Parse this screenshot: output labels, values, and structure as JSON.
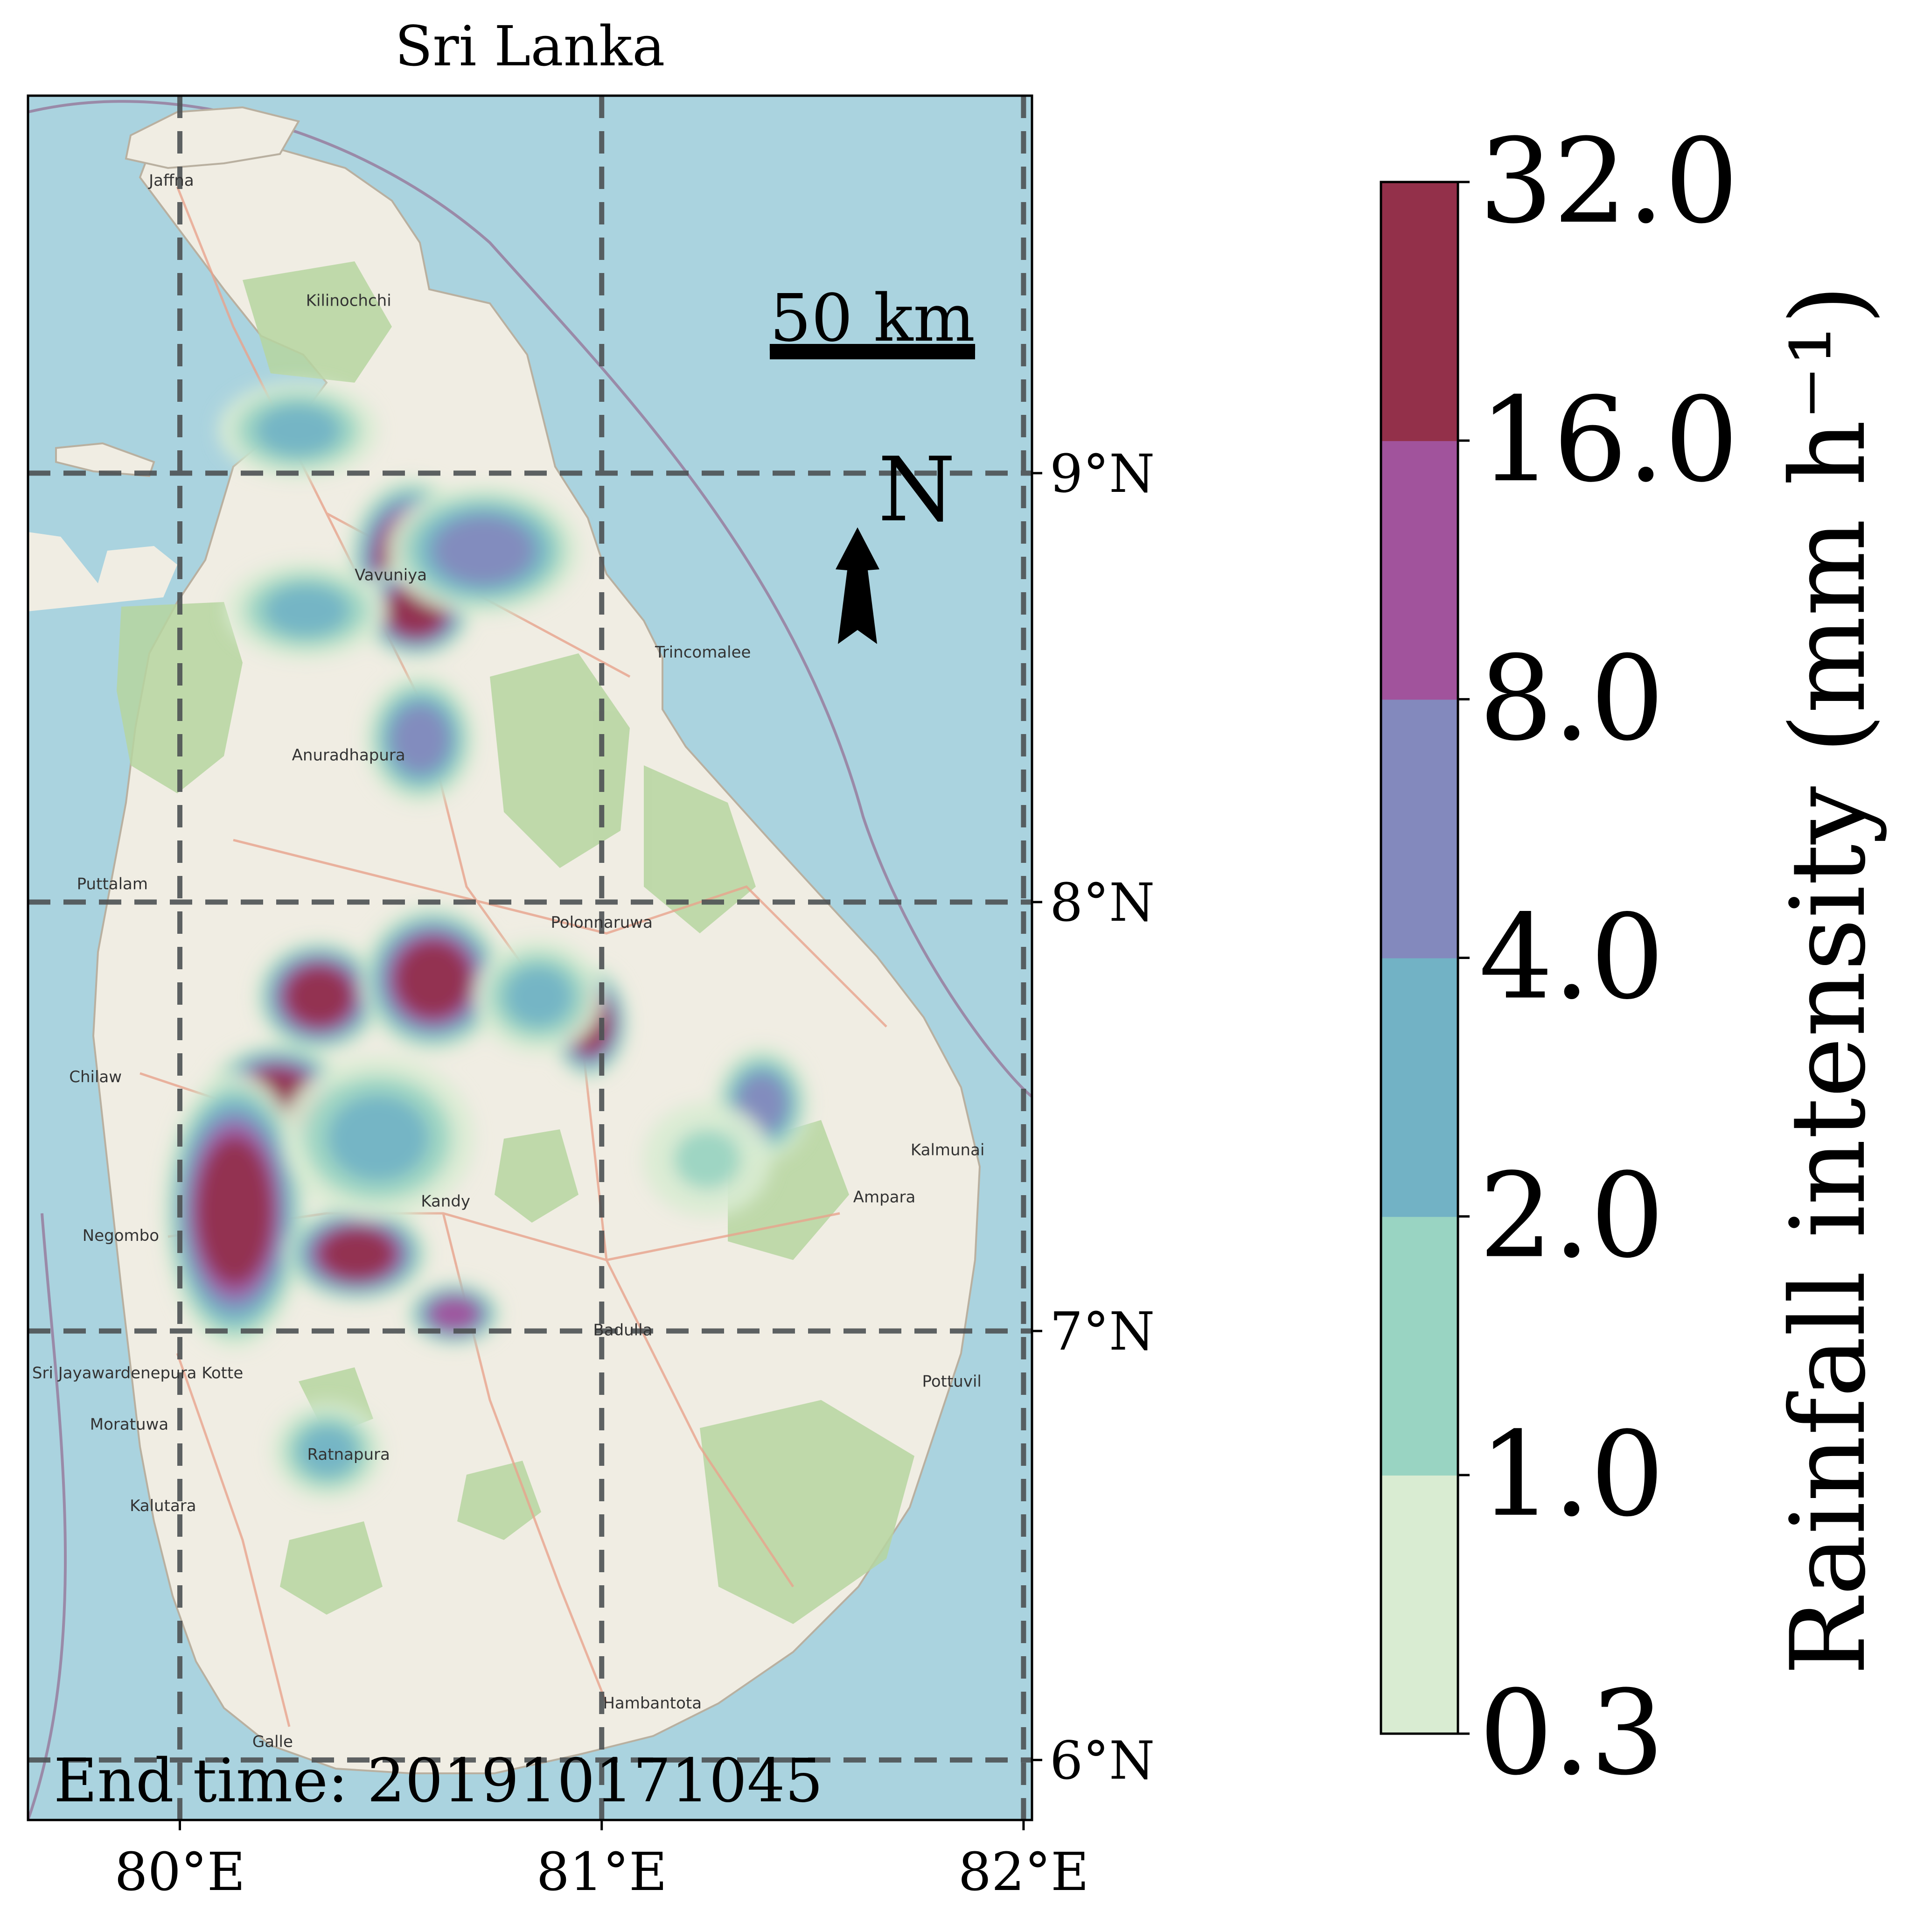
{
  "map": {
    "title": "Sri Lanka",
    "end_time": "End time: 201910171045",
    "scale_bar_label": "50 km",
    "north_label": "N",
    "north_arrow_icon": "north-arrow-icon",
    "lon_ticks": [
      "80°E",
      "81°E",
      "82°E"
    ],
    "lat_ticks": [
      "9°N",
      "8°N",
      "7°N",
      "6°N"
    ],
    "extent": {
      "lon": [
        79.64,
        82.02
      ],
      "lat": [
        5.86,
        9.88
      ]
    },
    "colors": {
      "sea": "#aad3df",
      "land": "#f0ede3",
      "forest": "#b6d5a0",
      "border": "#9a8aa8",
      "grid": "#4d5254"
    },
    "place_labels": [
      {
        "name": "Jaffna",
        "lon": 79.98,
        "lat": 9.67
      },
      {
        "name": "Kilinochchi",
        "lon": 80.4,
        "lat": 9.39
      },
      {
        "name": "Vavuniya",
        "lon": 80.5,
        "lat": 8.75
      },
      {
        "name": "Trincomalee",
        "lon": 81.24,
        "lat": 8.57
      },
      {
        "name": "Polonnaruwa",
        "lon": 81.0,
        "lat": 7.94
      },
      {
        "name": "Kandy",
        "lon": 80.63,
        "lat": 7.29
      },
      {
        "name": "Negombo",
        "lon": 79.86,
        "lat": 7.21
      },
      {
        "name": "Sri Jayawardenepura Kotte",
        "lon": 79.9,
        "lat": 6.89
      },
      {
        "name": "Moratuwa",
        "lon": 79.88,
        "lat": 6.77
      },
      {
        "name": "Kalutara",
        "lon": 79.96,
        "lat": 6.58
      },
      {
        "name": "Galle",
        "lon": 80.22,
        "lat": 6.03
      },
      {
        "name": "Hambantota",
        "lon": 81.12,
        "lat": 6.12
      },
      {
        "name": "Badulla",
        "lon": 81.05,
        "lat": 6.99
      },
      {
        "name": "Ampara",
        "lon": 81.67,
        "lat": 7.3
      },
      {
        "name": "Kalmunai",
        "lon": 81.82,
        "lat": 7.41
      },
      {
        "name": "Pottuvil",
        "lon": 81.83,
        "lat": 6.87
      },
      {
        "name": "Anuradhapura",
        "lon": 80.4,
        "lat": 8.33
      },
      {
        "name": "Puttalam",
        "lon": 79.84,
        "lat": 8.03
      },
      {
        "name": "Chilaw",
        "lon": 79.8,
        "lat": 7.58
      },
      {
        "name": "Ratnapura",
        "lon": 80.4,
        "lat": 6.7
      }
    ]
  },
  "legend": {
    "label": "Rainfall intensity (mm h⁻¹)",
    "levels": [
      "0.3",
      "1.0",
      "2.0",
      "4.0",
      "8.0",
      "16.0",
      "32.0"
    ],
    "colors": [
      "#d9ecd2",
      "#99d4c2",
      "#72b2c5",
      "#8389bd",
      "#a1539c",
      "#93304a"
    ]
  },
  "rain_cells": [
    {
      "lon": 80.55,
      "lat": 8.8,
      "rx": 0.08,
      "ry": 0.1,
      "level": 5
    },
    {
      "lon": 80.56,
      "lat": 8.68,
      "rx": 0.07,
      "ry": 0.06,
      "level": 5
    },
    {
      "lon": 80.72,
      "lat": 8.82,
      "rx": 0.12,
      "ry": 0.08,
      "level": 3
    },
    {
      "lon": 80.57,
      "lat": 8.38,
      "rx": 0.07,
      "ry": 0.08,
      "level": 3
    },
    {
      "lon": 80.33,
      "lat": 7.78,
      "rx": 0.08,
      "ry": 0.07,
      "level": 5
    },
    {
      "lon": 80.6,
      "lat": 7.82,
      "rx": 0.09,
      "ry": 0.09,
      "level": 5
    },
    {
      "lon": 80.97,
      "lat": 7.72,
      "rx": 0.05,
      "ry": 0.07,
      "level": 5
    },
    {
      "lon": 80.23,
      "lat": 7.54,
      "rx": 0.09,
      "ry": 0.07,
      "level": 5
    },
    {
      "lon": 80.13,
      "lat": 7.28,
      "rx": 0.09,
      "ry": 0.17,
      "level": 5
    },
    {
      "lon": 80.42,
      "lat": 7.18,
      "rx": 0.09,
      "ry": 0.06,
      "level": 5
    },
    {
      "lon": 80.65,
      "lat": 7.04,
      "rx": 0.06,
      "ry": 0.04,
      "level": 4
    },
    {
      "lon": 81.38,
      "lat": 7.53,
      "rx": 0.06,
      "ry": 0.07,
      "level": 3
    },
    {
      "lon": 80.47,
      "lat": 7.45,
      "rx": 0.12,
      "ry": 0.1,
      "level": 2
    },
    {
      "lon": 80.85,
      "lat": 7.78,
      "rx": 0.08,
      "ry": 0.07,
      "level": 2
    },
    {
      "lon": 81.25,
      "lat": 7.4,
      "rx": 0.08,
      "ry": 0.07,
      "level": 1
    },
    {
      "lon": 80.3,
      "lat": 8.68,
      "rx": 0.1,
      "ry": 0.06,
      "level": 2
    },
    {
      "lon": 80.28,
      "lat": 9.1,
      "rx": 0.1,
      "ry": 0.06,
      "level": 2
    },
    {
      "lon": 80.35,
      "lat": 6.72,
      "rx": 0.07,
      "ry": 0.06,
      "level": 2
    }
  ]
}
